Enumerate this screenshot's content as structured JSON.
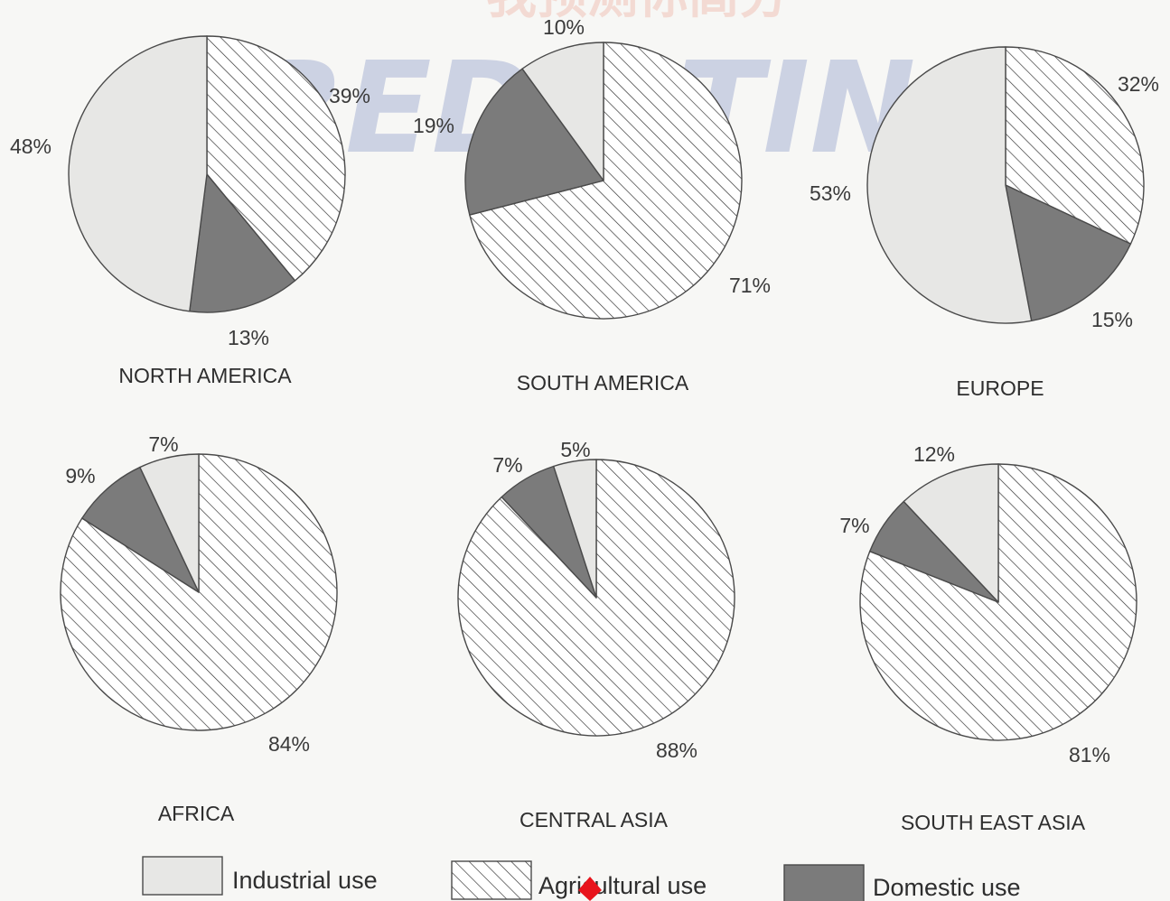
{
  "watermark": {
    "text": "PREDICTING",
    "cjk": "我预测你高分"
  },
  "chart_data": [
    {
      "type": "pie",
      "title": "NORTH AMERICA",
      "slices": [
        {
          "category": "Agricultural use",
          "value": 39,
          "label": "39%"
        },
        {
          "category": "Domestic use",
          "value": 13,
          "label": "13%"
        },
        {
          "category": "Industrial use",
          "value": 48,
          "label": "48%"
        }
      ]
    },
    {
      "type": "pie",
      "title": "SOUTH AMERICA",
      "slices": [
        {
          "category": "Agricultural use",
          "value": 71,
          "label": "71%"
        },
        {
          "category": "Domestic use",
          "value": 19,
          "label": "19%"
        },
        {
          "category": "Industrial use",
          "value": 10,
          "label": "10%"
        }
      ]
    },
    {
      "type": "pie",
      "title": "EUROPE",
      "slices": [
        {
          "category": "Agricultural use",
          "value": 32,
          "label": "32%"
        },
        {
          "category": "Domestic use",
          "value": 15,
          "label": "15%"
        },
        {
          "category": "Industrial use",
          "value": 53,
          "label": "53%"
        }
      ]
    },
    {
      "type": "pie",
      "title": "AFRICA",
      "slices": [
        {
          "category": "Agricultural use",
          "value": 84,
          "label": "84%"
        },
        {
          "category": "Domestic use",
          "value": 9,
          "label": "9%"
        },
        {
          "category": "Industrial use",
          "value": 7,
          "label": "7%"
        }
      ]
    },
    {
      "type": "pie",
      "title": "CENTRAL ASIA",
      "slices": [
        {
          "category": "Agricultural use",
          "value": 88,
          "label": "88%"
        },
        {
          "category": "Domestic use",
          "value": 7,
          "label": "7%"
        },
        {
          "category": "Industrial use",
          "value": 5,
          "label": "5%"
        }
      ]
    },
    {
      "type": "pie",
      "title": "SOUTH EAST ASIA",
      "slices": [
        {
          "category": "Agricultural use",
          "value": 81,
          "label": "81%"
        },
        {
          "category": "Domestic use",
          "value": 7,
          "label": "7%"
        },
        {
          "category": "Industrial use",
          "value": 12,
          "label": "12%"
        }
      ]
    }
  ],
  "legend": [
    {
      "label": "Industrial use",
      "fill": "plain-light"
    },
    {
      "label": "Agricultural use",
      "fill": "hatch"
    },
    {
      "label": "Domestic use",
      "fill": "dark"
    }
  ],
  "colors": {
    "industrial": "#e7e7e5",
    "agricultural_bg": "#ffffff",
    "hatch_line": "#2a2a2a",
    "domestic": "#7b7b7b",
    "outline": "#4a4a4a",
    "watermark_text": "#9aa6cf",
    "watermark_cjk": "#f0c4b8",
    "marker": "#e8141c"
  }
}
